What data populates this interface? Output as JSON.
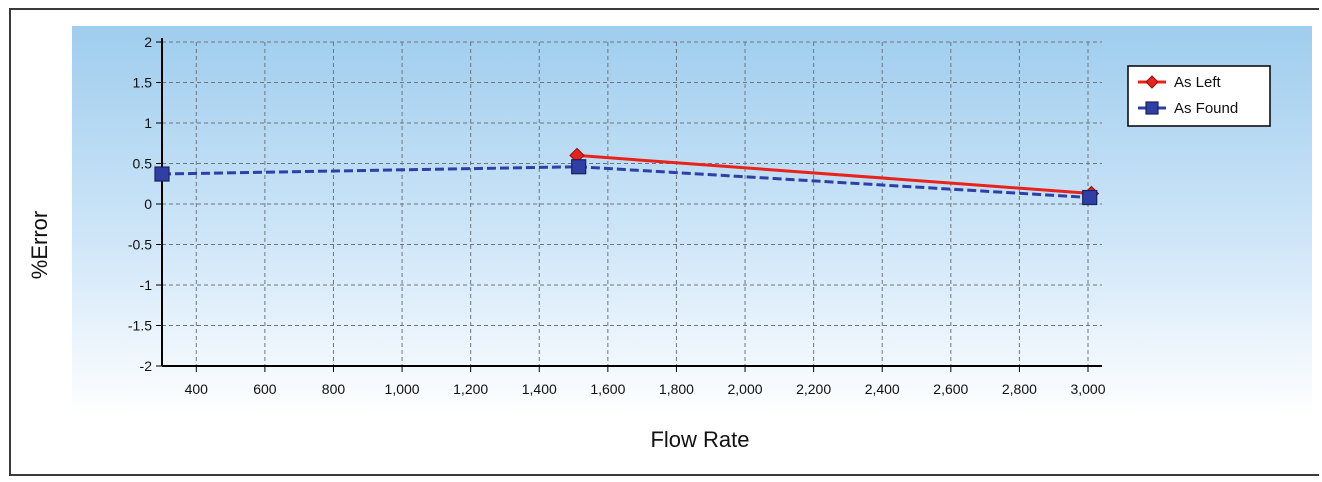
{
  "chart_data": {
    "type": "line",
    "title": "",
    "xlabel": "Flow Rate",
    "ylabel": "%Error",
    "xlim": [
      300,
      3000
    ],
    "ylim": [
      -2,
      2
    ],
    "x_ticks": [
      400,
      600,
      800,
      1000,
      1200,
      1400,
      1600,
      1800,
      2000,
      2200,
      2400,
      2600,
      2800,
      3000
    ],
    "x_tick_labels": [
      "400",
      "600",
      "800",
      "1,000",
      "1,200",
      "1,400",
      "1,600",
      "1,800",
      "2,000",
      "2,200",
      "2,400",
      "2,600",
      "2,800",
      "3,000"
    ],
    "y_ticks": [
      2,
      1.5,
      1,
      0.5,
      0,
      -0.5,
      -1,
      -1.5,
      -2
    ],
    "y_tick_labels": [
      "2",
      "1.5",
      "1",
      "0.5",
      "0",
      "-0.5",
      "-1",
      "-1.5",
      "-2"
    ],
    "grid": true,
    "legend_position": "top-right",
    "series": [
      {
        "name": "As Left",
        "x": [
          1510,
          3010
        ],
        "y": [
          0.6,
          0.13
        ],
        "color": "#e8231c",
        "marker": "diamond",
        "line_style": "solid"
      },
      {
        "name": "As Found",
        "x": [
          300,
          1515,
          3005
        ],
        "y": [
          0.37,
          0.46,
          0.08
        ],
        "color": "#2f3fa6",
        "marker": "square",
        "line_style": "dashed"
      }
    ]
  }
}
